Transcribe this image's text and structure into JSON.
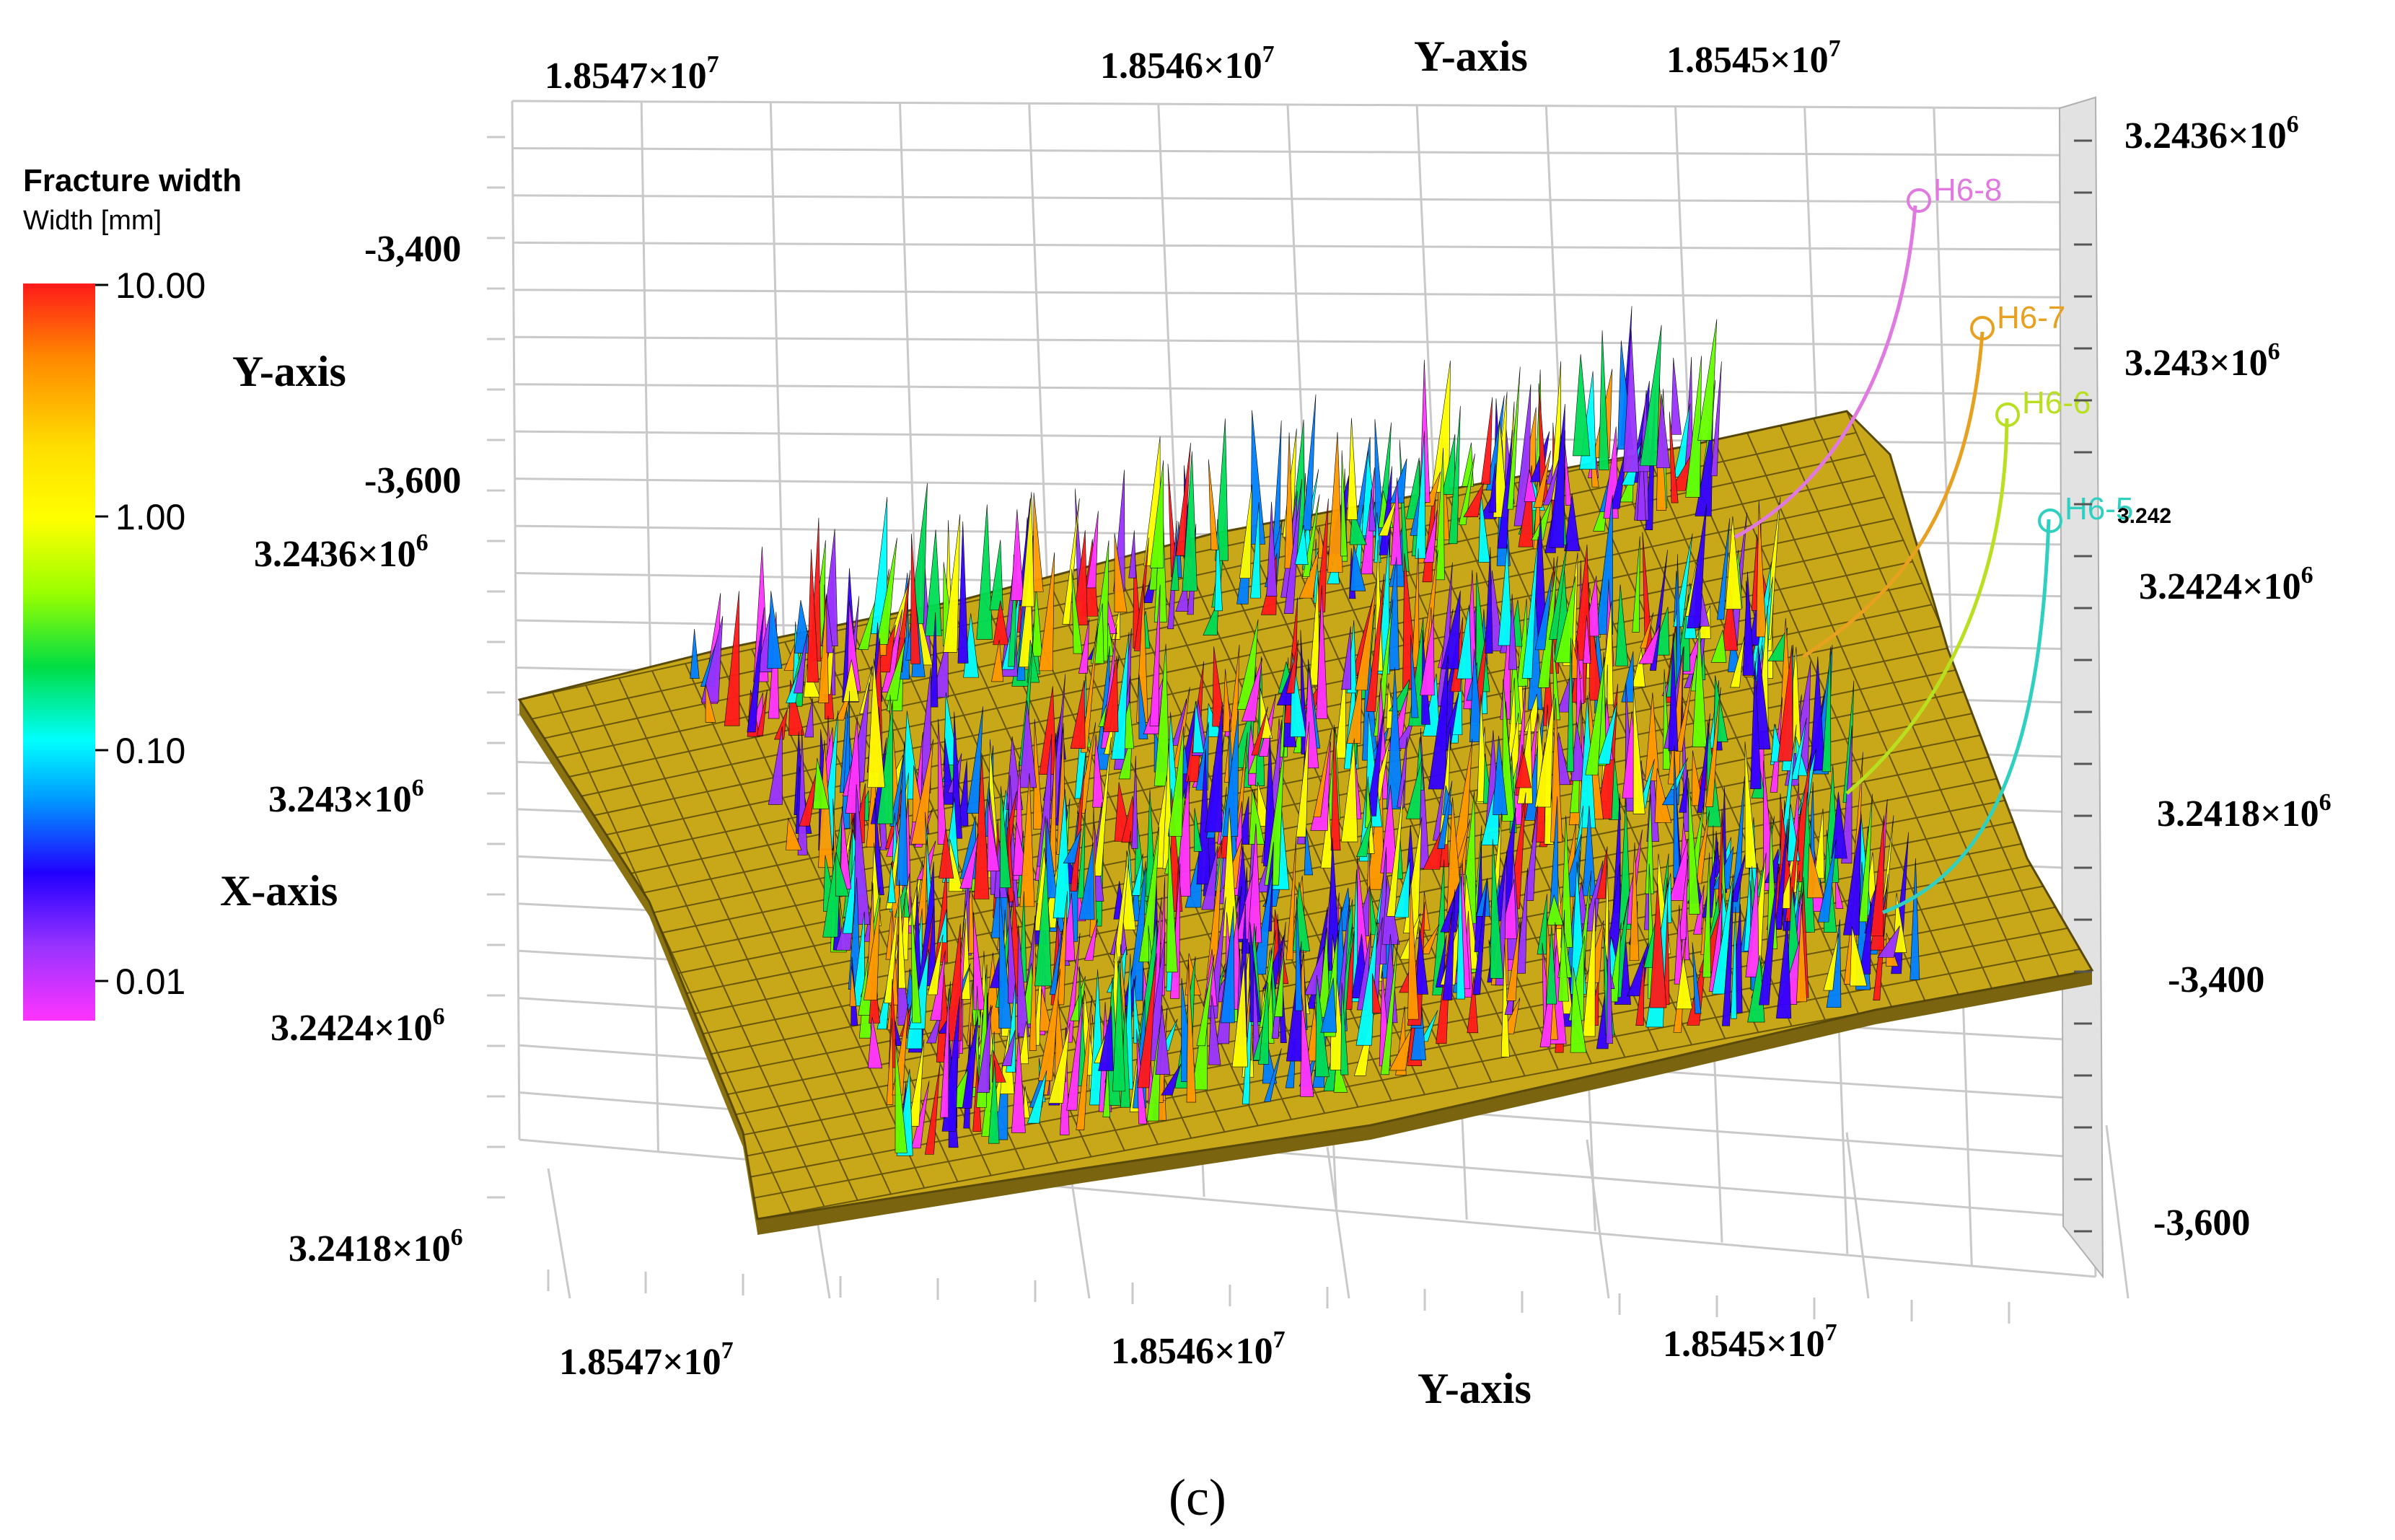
{
  "legend": {
    "title": "Fracture width",
    "subtitle": "Width [mm]",
    "ticks": [
      "10.00",
      "1.00",
      "0.10",
      "0.01"
    ],
    "colors": [
      "#ff1a1a",
      "#ff9900",
      "#ffff00",
      "#66ff00",
      "#00dd55",
      "#00ffff",
      "#0080ff",
      "#3300ff",
      "#9933ff",
      "#ff33ff"
    ]
  },
  "axes": {
    "top_y_axis_title": "Y-axis",
    "bottom_y_axis_title": "Y-axis",
    "left_y_axis_title": "Y-axis",
    "left_x_axis_title": "X-axis",
    "top_ticks": [
      {
        "base": "1.8547×10",
        "exp": "7"
      },
      {
        "base": "1.8546×10",
        "exp": "7"
      },
      {
        "base": "1.8545×10",
        "exp": "7"
      }
    ],
    "bottom_ticks": [
      {
        "base": "1.8547×10",
        "exp": "7"
      },
      {
        "base": "1.8546×10",
        "exp": "7"
      },
      {
        "base": "1.8545×10",
        "exp": "7"
      }
    ],
    "left_depth_ticks": [
      "-3,400",
      "-3,600"
    ],
    "left_x_ticks": [
      {
        "base": "3.2436×10",
        "exp": "6"
      },
      {
        "base": "3.243×10",
        "exp": "6"
      },
      {
        "base": "3.2424×10",
        "exp": "6"
      },
      {
        "base": "3.2418×10",
        "exp": "6"
      }
    ],
    "right_x_ticks": [
      {
        "base": "3.2436×10",
        "exp": "6"
      },
      {
        "base": "3.243×10",
        "exp": "6"
      },
      {
        "base": "3.2424×10",
        "exp": "6"
      },
      {
        "base": "3.2418×10",
        "exp": "6"
      }
    ],
    "right_depth_ticks": [
      "-3,400",
      "-3,600"
    ],
    "small_tick_label": "3.242"
  },
  "wells": [
    {
      "label": "H6-8",
      "color": "#e07ae0"
    },
    {
      "label": "H6-7",
      "color": "#e8a020"
    },
    {
      "label": "H6-6",
      "color": "#b8e020"
    },
    {
      "label": "H6-5",
      "color": "#30d0c0"
    }
  ],
  "colors": {
    "surface": "#c8a818",
    "surface_dark": "#8a7210",
    "grid": "#c9c9c9"
  },
  "caption": "(c)"
}
